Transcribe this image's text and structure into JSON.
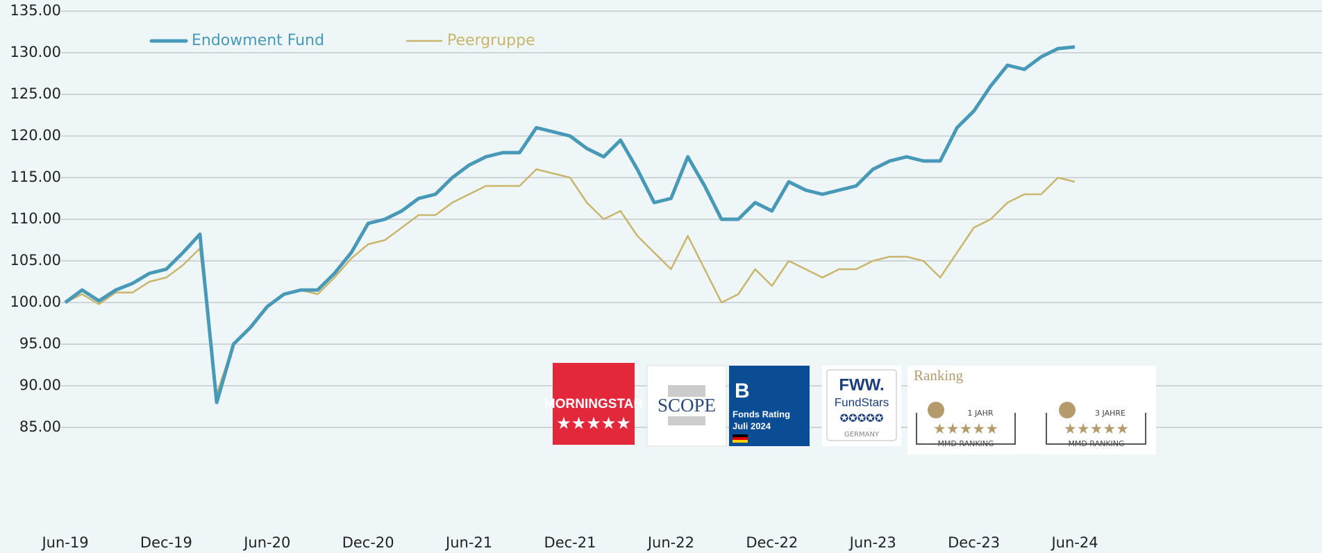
{
  "chart_data": {
    "type": "line",
    "categories": [
      "Jun-19",
      null,
      null,
      null,
      null,
      null,
      "Dec-19",
      null,
      null,
      null,
      null,
      null,
      "Jun-20",
      null,
      null,
      null,
      null,
      null,
      "Dec-20",
      null,
      null,
      null,
      null,
      null,
      "Jun-21",
      null,
      null,
      null,
      null,
      null,
      "Dec-21",
      null,
      null,
      null,
      null,
      null,
      "Jun-22",
      null,
      null,
      null,
      null,
      null,
      "Dec-22",
      null,
      null,
      null,
      null,
      null,
      "Jun-23",
      null,
      null,
      null,
      null,
      null,
      "Dec-23",
      null,
      null,
      null,
      null,
      null,
      "Jun-24"
    ],
    "series": [
      {
        "name": "Endowment Fund",
        "color": "#4799b7",
        "values": [
          100,
          101.5,
          100.2,
          101.5,
          102.3,
          103.5,
          104,
          106,
          108.2,
          88,
          95,
          97,
          99.5,
          101,
          101.5,
          101.5,
          103.5,
          106,
          109.5,
          110,
          111,
          112.5,
          113,
          115,
          116.5,
          117.5,
          118,
          118,
          121,
          120.5,
          120,
          118.5,
          117.5,
          119.5,
          116,
          112,
          112.5,
          117.5,
          114,
          110,
          110,
          112,
          111,
          114.5,
          113.5,
          113,
          113.5,
          114,
          116,
          117,
          117.5,
          117,
          117,
          121,
          123,
          126,
          128.5,
          128,
          129.5,
          130.5,
          130.7
        ]
      },
      {
        "name": "Peergruppe",
        "color": "#c9b66c",
        "values": [
          100,
          101,
          99.8,
          101.2,
          101.2,
          102.5,
          103,
          104.5,
          106.5,
          89,
          95,
          97,
          99.5,
          101,
          101.5,
          101,
          103,
          105.3,
          107,
          107.5,
          109,
          110.5,
          110.5,
          112,
          113,
          114,
          114,
          114,
          116,
          115.5,
          115,
          112,
          110,
          111,
          108,
          106,
          104,
          108,
          104,
          100,
          101,
          104,
          102,
          105,
          104,
          103,
          104,
          104,
          105,
          105.5,
          105.5,
          105,
          103,
          106,
          109,
          110,
          112,
          113,
          113,
          115,
          114.5
        ]
      }
    ],
    "ylim": [
      85,
      135
    ],
    "yticks": [
      {
        "value": 85,
        "label": "85.00"
      },
      {
        "value": 90,
        "label": "90.00"
      },
      {
        "value": 95,
        "label": "95.00"
      },
      {
        "value": 100,
        "label": "100.00"
      },
      {
        "value": 105,
        "label": "105.00"
      },
      {
        "value": 110,
        "label": "110.00"
      },
      {
        "value": 115,
        "label": "115.00"
      },
      {
        "value": 120,
        "label": "120.00"
      },
      {
        "value": 125,
        "label": "125.00"
      },
      {
        "value": 130,
        "label": "130.00"
      },
      {
        "value": 135,
        "label": "135.00"
      }
    ],
    "grid": true,
    "legend": "top-left"
  },
  "badges": {
    "morningstar": "MORNINGSTAR",
    "scope": "SCOPE",
    "scope_grade": "B",
    "scope_line1": "Fonds Rating",
    "scope_line2": "Juli 2024",
    "fww": "FWW.",
    "fundstars": "FundStars",
    "fww_country": "GERMANY",
    "ranking": "Ranking",
    "rank1_period": "1 JAHR",
    "rank3_period": "3 JAHRE",
    "rank_name": "MMD RANKING"
  }
}
